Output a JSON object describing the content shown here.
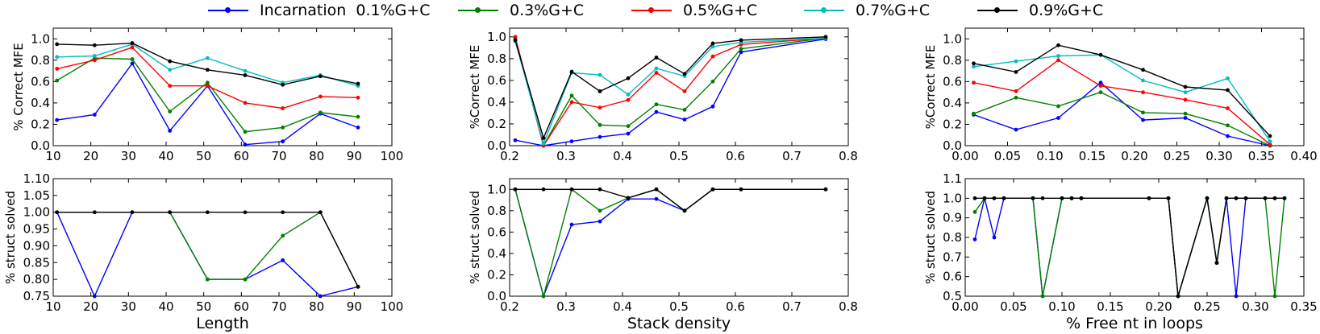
{
  "legend": {
    "entries": [
      {
        "label": "Incarnation  0.1%G+C",
        "color": "#0000ff"
      },
      {
        "label": "0.3%G+C",
        "color": "#008000"
      },
      {
        "label": "0.5%G+C",
        "color": "#ff0000"
      },
      {
        "label": "0.7%G+C",
        "color": "#00bfbf"
      },
      {
        "label": "0.9%G+C",
        "color": "#000000"
      }
    ]
  },
  "chart_data": [
    {
      "type": "line",
      "xlabel": "",
      "ylabel": "% Correct MFE",
      "xlim": [
        10,
        100
      ],
      "ylim": [
        0.0,
        1.1
      ],
      "xticks": [
        "10",
        "20",
        "30",
        "40",
        "50",
        "60",
        "70",
        "80",
        "90",
        "100"
      ],
      "yticks": [
        "0.0",
        "0.2",
        "0.4",
        "0.6",
        "0.8",
        "1.0"
      ],
      "x": [
        11,
        21,
        31,
        41,
        51,
        61,
        71,
        81,
        91
      ],
      "series": [
        {
          "name": "Incarnation  0.1%G+C",
          "color": "#0000ff",
          "values": [
            0.24,
            0.29,
            0.77,
            0.14,
            0.56,
            0.01,
            0.04,
            0.3,
            0.17
          ]
        },
        {
          "name": "0.3%G+C",
          "color": "#008000",
          "values": [
            0.61,
            0.82,
            0.81,
            0.32,
            0.59,
            0.13,
            0.17,
            0.31,
            0.27
          ]
        },
        {
          "name": "0.5%G+C",
          "color": "#ff0000",
          "values": [
            0.72,
            0.8,
            0.92,
            0.56,
            0.56,
            0.4,
            0.35,
            0.46,
            0.45
          ]
        },
        {
          "name": "0.7%G+C",
          "color": "#00bfbf",
          "values": [
            0.83,
            0.84,
            0.95,
            0.71,
            0.82,
            0.7,
            0.59,
            0.66,
            0.56
          ]
        },
        {
          "name": "0.9%G+C",
          "color": "#000000",
          "values": [
            0.95,
            0.94,
            0.96,
            0.79,
            0.71,
            0.66,
            0.57,
            0.65,
            0.58
          ]
        }
      ]
    },
    {
      "type": "line",
      "xlabel": "",
      "ylabel": "%Correct MFE",
      "xlim": [
        0.2,
        0.8
      ],
      "ylim": [
        0.0,
        1.08
      ],
      "xticks": [
        "0.2",
        "0.3",
        "0.4",
        "0.5",
        "0.6",
        "0.7",
        "0.8"
      ],
      "yticks": [
        "0.0",
        "0.2",
        "0.4",
        "0.6",
        "0.8",
        "1.0"
      ],
      "x": [
        0.21,
        0.26,
        0.31,
        0.36,
        0.41,
        0.46,
        0.51,
        0.56,
        0.61,
        0.76
      ],
      "series": [
        {
          "name": "Incarnation  0.1%G+C",
          "color": "#0000ff",
          "values": [
            0.05,
            0.0,
            0.04,
            0.08,
            0.11,
            0.31,
            0.24,
            0.36,
            0.86,
            0.98
          ]
        },
        {
          "name": "0.3%G+C",
          "color": "#008000",
          "values": [
            0.99,
            0.0,
            0.46,
            0.19,
            0.18,
            0.38,
            0.33,
            0.59,
            0.89,
            0.99
          ]
        },
        {
          "name": "0.5%G+C",
          "color": "#ff0000",
          "values": [
            1.0,
            0.0,
            0.4,
            0.35,
            0.42,
            0.67,
            0.5,
            0.82,
            0.93,
            0.99
          ]
        },
        {
          "name": "0.7%G+C",
          "color": "#00bfbf",
          "values": [
            0.96,
            0.02,
            0.67,
            0.65,
            0.47,
            0.71,
            0.64,
            0.91,
            0.95,
            0.99
          ]
        },
        {
          "name": "0.9%G+C",
          "color": "#000000",
          "values": [
            0.97,
            0.07,
            0.68,
            0.5,
            0.62,
            0.81,
            0.66,
            0.94,
            0.97,
            1.0
          ]
        }
      ]
    },
    {
      "type": "line",
      "xlabel": "",
      "ylabel": "%Correct MFE",
      "xlim": [
        0.0,
        0.4
      ],
      "ylim": [
        0.0,
        1.1
      ],
      "xticks": [
        "0.00",
        "0.05",
        "0.10",
        "0.15",
        "0.20",
        "0.25",
        "0.30",
        "0.35",
        "0.40"
      ],
      "yticks": [
        "0.0",
        "0.2",
        "0.4",
        "0.6",
        "0.8",
        "1.0"
      ],
      "x": [
        0.01,
        0.06,
        0.11,
        0.16,
        0.21,
        0.26,
        0.31,
        0.36
      ],
      "series": [
        {
          "name": "Incarnation  0.1%G+C",
          "color": "#0000ff",
          "values": [
            0.29,
            0.15,
            0.26,
            0.59,
            0.24,
            0.26,
            0.09,
            0.0
          ]
        },
        {
          "name": "0.3%G+C",
          "color": "#008000",
          "values": [
            0.3,
            0.45,
            0.37,
            0.5,
            0.31,
            0.3,
            0.19,
            0.0
          ]
        },
        {
          "name": "0.5%G+C",
          "color": "#ff0000",
          "values": [
            0.59,
            0.51,
            0.8,
            0.56,
            0.5,
            0.43,
            0.35,
            0.01
          ]
        },
        {
          "name": "0.7%G+C",
          "color": "#00bfbf",
          "values": [
            0.74,
            0.79,
            0.84,
            0.85,
            0.61,
            0.5,
            0.63,
            0.04
          ]
        },
        {
          "name": "0.9%G+C",
          "color": "#000000",
          "values": [
            0.77,
            0.69,
            0.94,
            0.85,
            0.71,
            0.55,
            0.52,
            0.09
          ]
        }
      ]
    },
    {
      "type": "line",
      "xlabel": "Length",
      "ylabel": "% struct solved",
      "xlim": [
        10,
        100
      ],
      "ylim": [
        0.75,
        1.1
      ],
      "xticks": [
        "10",
        "20",
        "30",
        "40",
        "50",
        "60",
        "70",
        "80",
        "90",
        "100"
      ],
      "yticks": [
        "0.75",
        "0.80",
        "0.85",
        "0.90",
        "0.95",
        "1.00",
        "1.05",
        "1.10"
      ],
      "x": [
        11,
        21,
        31,
        41,
        51,
        61,
        71,
        81,
        91
      ],
      "series": [
        {
          "name": "Incarnation  0.1%G+C",
          "color": "#0000ff",
          "values": [
            1.0,
            0.75,
            1.0,
            1.0,
            0.8,
            0.8,
            0.857,
            0.75,
            0.778
          ]
        },
        {
          "name": "0.3%G+C",
          "color": "#008000",
          "values": [
            1.0,
            1.0,
            1.0,
            1.0,
            0.8,
            0.8,
            0.93,
            1.0,
            0.778
          ]
        },
        {
          "name": "0.9%G+C",
          "color": "#000000",
          "values": [
            1.0,
            1.0,
            1.0,
            1.0,
            1.0,
            1.0,
            1.0,
            1.0,
            0.778
          ]
        }
      ]
    },
    {
      "type": "line",
      "xlabel": "Stack density",
      "ylabel": "% struct solved",
      "xlim": [
        0.2,
        0.8
      ],
      "ylim": [
        0.0,
        1.1
      ],
      "xticks": [
        "0.2",
        "0.3",
        "0.4",
        "0.5",
        "0.6",
        "0.7",
        "0.8"
      ],
      "yticks": [
        "0.0",
        "0.2",
        "0.4",
        "0.6",
        "0.8",
        "1.0"
      ],
      "x": [
        0.21,
        0.26,
        0.31,
        0.36,
        0.41,
        0.46,
        0.51,
        0.56,
        0.61,
        0.76
      ],
      "series": [
        {
          "name": "Incarnation  0.1%G+C",
          "color": "#0000ff",
          "values": [
            1.0,
            0.0,
            0.67,
            0.7,
            0.91,
            0.91,
            0.8,
            1.0,
            1.0,
            1.0
          ]
        },
        {
          "name": "0.3%G+C",
          "color": "#008000",
          "values": [
            1.0,
            0.0,
            1.0,
            0.8,
            0.92,
            1.0,
            0.8,
            1.0,
            1.0,
            1.0
          ]
        },
        {
          "name": "0.9%G+C",
          "color": "#000000",
          "values": [
            1.0,
            1.0,
            1.0,
            1.0,
            0.92,
            1.0,
            0.8,
            1.0,
            1.0,
            1.0
          ]
        }
      ]
    },
    {
      "type": "line",
      "xlabel": "% Free nt in loops",
      "ylabel": "% struct solved",
      "xlim": [
        0.0,
        0.35
      ],
      "ylim": [
        0.5,
        1.1
      ],
      "xticks": [
        "0.00",
        "0.05",
        "0.10",
        "0.15",
        "0.20",
        "0.25",
        "0.30",
        "0.35"
      ],
      "yticks": [
        "0.5",
        "0.6",
        "0.7",
        "0.8",
        "0.9",
        "1.0",
        "1.1"
      ],
      "x": [
        0.01,
        0.02,
        0.03,
        0.04,
        0.07,
        0.08,
        0.1,
        0.11,
        0.12,
        0.19,
        0.21,
        0.22,
        0.25,
        0.26,
        0.27,
        0.28,
        0.29,
        0.31,
        0.32,
        0.33
      ],
      "series": [
        {
          "name": "Incarnation  0.1%G+C",
          "color": "#0000ff",
          "values": [
            0.79,
            1.0,
            0.8,
            1.0,
            1.0,
            0.5,
            1.0,
            1.0,
            1.0,
            1.0,
            1.0,
            0.5,
            1.0,
            0.67,
            1.0,
            0.5,
            1.0,
            1.0,
            1.0,
            1.0
          ]
        },
        {
          "name": "0.3%G+C",
          "color": "#008000",
          "values": [
            0.93,
            1.0,
            1.0,
            1.0,
            1.0,
            0.5,
            1.0,
            1.0,
            1.0,
            1.0,
            1.0,
            0.5,
            1.0,
            0.67,
            1.0,
            1.0,
            1.0,
            1.0,
            0.5,
            1.0
          ]
        },
        {
          "name": "0.9%G+C",
          "color": "#000000",
          "values": [
            1.0,
            1.0,
            1.0,
            1.0,
            1.0,
            1.0,
            1.0,
            1.0,
            1.0,
            1.0,
            1.0,
            0.5,
            1.0,
            0.67,
            1.0,
            1.0,
            1.0,
            1.0,
            1.0,
            1.0
          ]
        }
      ]
    }
  ]
}
